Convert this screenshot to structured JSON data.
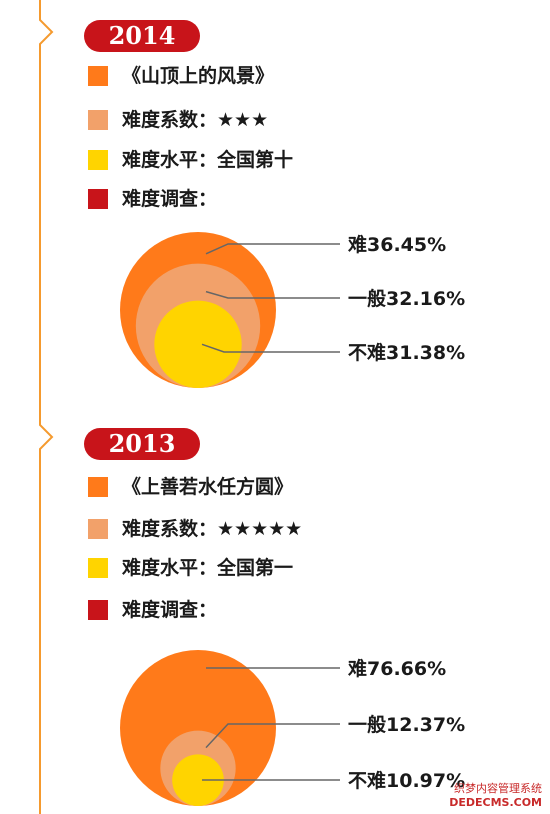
{
  "colors": {
    "accent_red": "#c8141a",
    "orange": "#ff7a1a",
    "light_orange": "#f2a16a",
    "yellow": "#ffd400",
    "dark_red": "#c8141a",
    "timeline": "#f59a2e"
  },
  "sections": [
    {
      "year": "2014",
      "items": [
        {
          "text": "《山顶上的风景》",
          "color": "#ff7a1a"
        },
        {
          "text": "难度系数：★★★",
          "color": "#f2a16a"
        },
        {
          "text": "难度水平：全国第十",
          "color": "#ffd400"
        },
        {
          "text": "难度调查：",
          "color": "#c8141a"
        }
      ]
    },
    {
      "year": "2013",
      "items": [
        {
          "text": "《上善若水任方圆》",
          "color": "#ff7a1a"
        },
        {
          "text": "难度系数：★★★★★",
          "color": "#f2a16a"
        },
        {
          "text": "难度水平：全国第一",
          "color": "#ffd400"
        },
        {
          "text": "难度调查：",
          "color": "#c8141a"
        }
      ]
    }
  ],
  "chart_data": [
    {
      "type": "pie",
      "title": "",
      "categories": [
        "难",
        "一般",
        "不难"
      ],
      "values": [
        36.45,
        32.16,
        31.38
      ],
      "labels": [
        "难36.45%",
        "一般32.16%",
        "不难31.38%"
      ],
      "colors": [
        "#ff7a1a",
        "#f2a16a",
        "#ffd400"
      ]
    },
    {
      "type": "pie",
      "title": "",
      "categories": [
        "难",
        "一般",
        "不难"
      ],
      "values": [
        76.66,
        12.37,
        10.97
      ],
      "labels": [
        "难76.66%",
        "一般12.37%",
        "不难10.97%"
      ],
      "colors": [
        "#ff7a1a",
        "#f2a16a",
        "#ffd400"
      ]
    }
  ],
  "watermark": {
    "line1": "织梦内容管理系统",
    "line2": "DEDECMS.COM"
  }
}
